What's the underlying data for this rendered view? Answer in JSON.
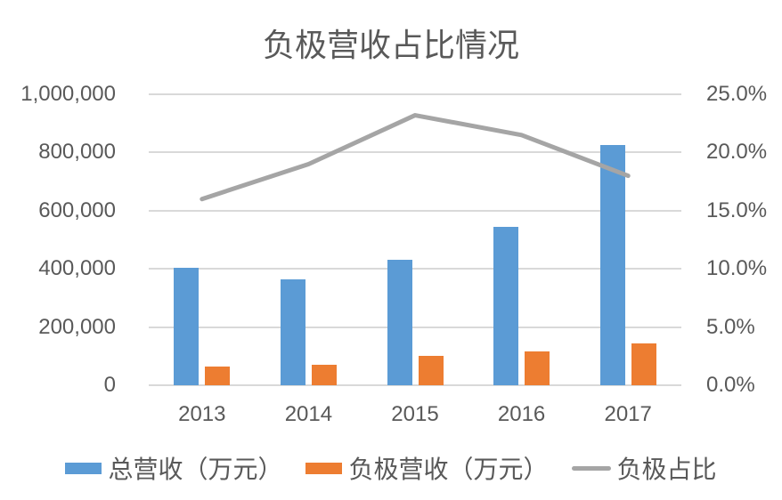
{
  "chart_data": {
    "type": "combo-bar-line",
    "title": "负极营收占比情况",
    "categories": [
      "2013",
      "2014",
      "2015",
      "2016",
      "2017"
    ],
    "series": [
      {
        "name": "总营收（万元）",
        "type": "bar",
        "axis": "left",
        "color": "#5B9BD5",
        "values": [
          405000,
          365000,
          430000,
          545000,
          825000
        ]
      },
      {
        "name": "负极营收（万元）",
        "type": "bar",
        "axis": "left",
        "color": "#ED7D31",
        "values": [
          65000,
          70000,
          100000,
          115000,
          145000
        ]
      },
      {
        "name": "负极占比",
        "type": "line",
        "axis": "right",
        "color": "#A5A5A5",
        "values": [
          16.0,
          19.0,
          23.2,
          21.5,
          18.0
        ]
      }
    ],
    "left_axis": {
      "min": 0,
      "max": 1000000,
      "step": 200000,
      "tick_labels": [
        "0",
        "200,000",
        "400,000",
        "600,000",
        "800,000",
        "1,000,000"
      ]
    },
    "right_axis": {
      "min": 0,
      "max": 25,
      "step": 5,
      "tick_labels": [
        "0.0%",
        "5.0%",
        "10.0%",
        "15.0%",
        "20.0%",
        "25.0%"
      ]
    },
    "grid": true,
    "legend_position": "bottom",
    "colors": {
      "background": "#FFFFFF",
      "text": "#595959",
      "gridline": "#D9D9D9"
    }
  }
}
